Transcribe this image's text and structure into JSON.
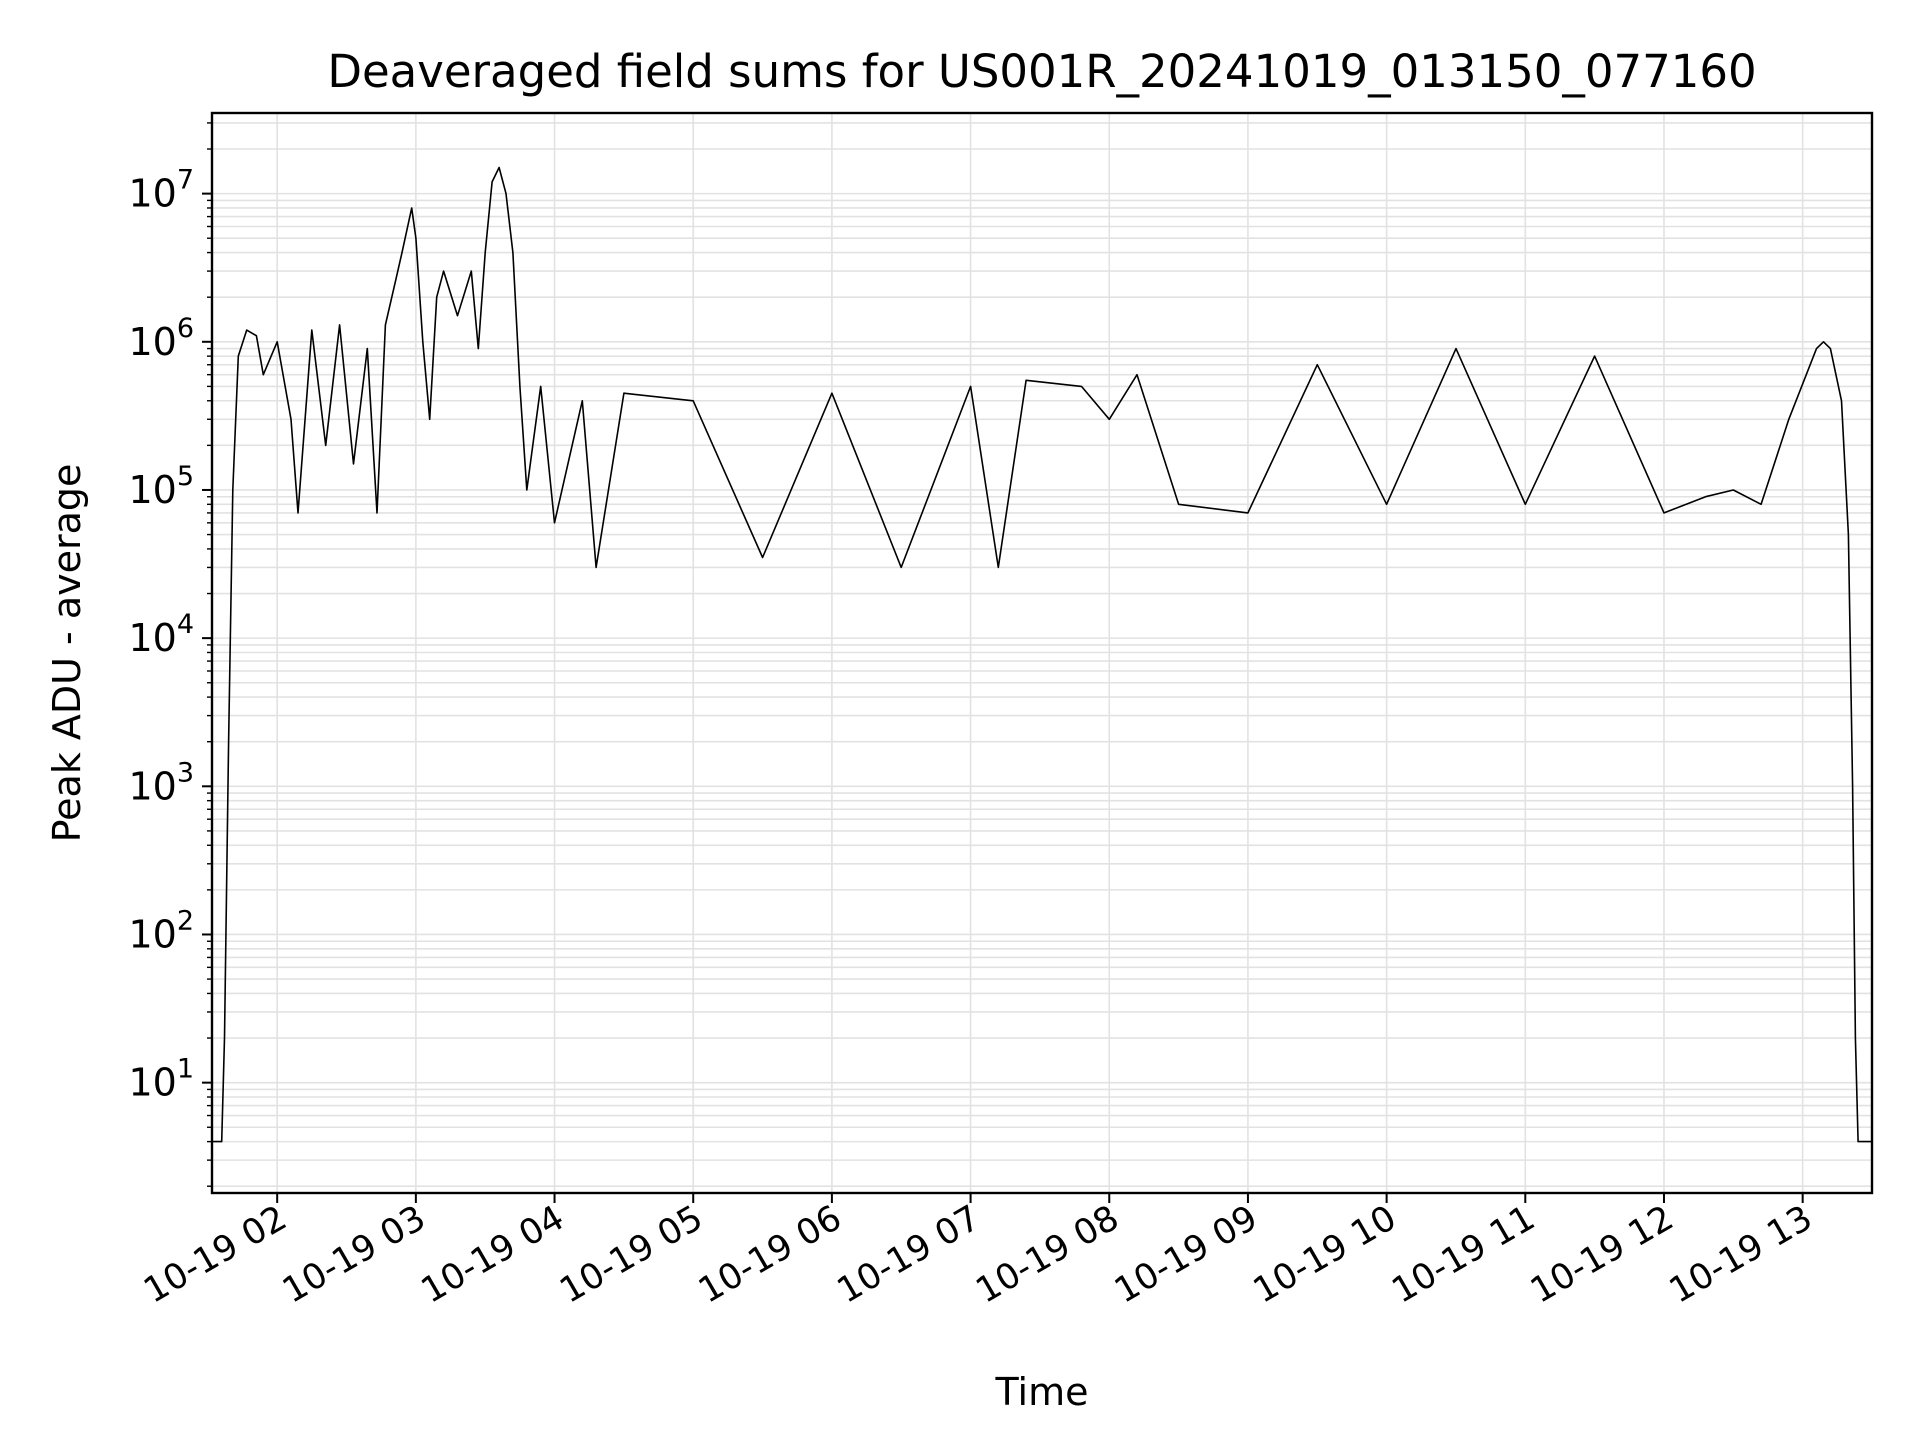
{
  "chart_data": {
    "type": "line",
    "title": "Deaveraged field sums for US001R_20241019_013150_077160",
    "xlabel": "Time",
    "ylabel": "Peak ADU - average",
    "yscale": "log",
    "ylim": [
      1.8,
      35000000
    ],
    "xlim_hours": [
      1.53,
      13.5
    ],
    "grid": true,
    "legend": "none",
    "line_color": "#000000",
    "x_ticks": [
      {
        "label": "10-19 02",
        "hour": 2
      },
      {
        "label": "10-19 03",
        "hour": 3
      },
      {
        "label": "10-19 04",
        "hour": 4
      },
      {
        "label": "10-19 05",
        "hour": 5
      },
      {
        "label": "10-19 06",
        "hour": 6
      },
      {
        "label": "10-19 07",
        "hour": 7
      },
      {
        "label": "10-19 08",
        "hour": 8
      },
      {
        "label": "10-19 09",
        "hour": 9
      },
      {
        "label": "10-19 10",
        "hour": 10
      },
      {
        "label": "10-19 11",
        "hour": 11
      },
      {
        "label": "10-19 12",
        "hour": 12
      },
      {
        "label": "10-19 13",
        "hour": 13
      }
    ],
    "y_ticks": [
      {
        "base": "10",
        "exp": "1",
        "value": 10
      },
      {
        "base": "10",
        "exp": "2",
        "value": 100
      },
      {
        "base": "10",
        "exp": "3",
        "value": 1000
      },
      {
        "base": "10",
        "exp": "4",
        "value": 10000
      },
      {
        "base": "10",
        "exp": "5",
        "value": 100000
      },
      {
        "base": "10",
        "exp": "6",
        "value": 1000000
      },
      {
        "base": "10",
        "exp": "7",
        "value": 10000000
      }
    ],
    "series": [
      {
        "points": [
          [
            1.53,
            4
          ],
          [
            1.6,
            4
          ],
          [
            1.62,
            20
          ],
          [
            1.65,
            2000
          ],
          [
            1.68,
            100000
          ],
          [
            1.72,
            800000
          ],
          [
            1.78,
            1200000
          ],
          [
            1.85,
            1100000
          ],
          [
            1.9,
            600000
          ],
          [
            2.0,
            1000000
          ],
          [
            2.1,
            300000
          ],
          [
            2.15,
            70000
          ],
          [
            2.25,
            1200000
          ],
          [
            2.35,
            200000
          ],
          [
            2.45,
            1300000
          ],
          [
            2.55,
            150000
          ],
          [
            2.65,
            900000
          ],
          [
            2.72,
            70000
          ],
          [
            2.78,
            1300000
          ],
          [
            2.85,
            2500000
          ],
          [
            2.9,
            4000000
          ],
          [
            2.97,
            8000000
          ],
          [
            3.0,
            5000000
          ],
          [
            3.05,
            1000000
          ],
          [
            3.1,
            300000
          ],
          [
            3.15,
            2000000
          ],
          [
            3.2,
            3000000
          ],
          [
            3.3,
            1500000
          ],
          [
            3.4,
            3000000
          ],
          [
            3.45,
            900000
          ],
          [
            3.5,
            4000000
          ],
          [
            3.55,
            12000000
          ],
          [
            3.6,
            15000000
          ],
          [
            3.65,
            10000000
          ],
          [
            3.7,
            4000000
          ],
          [
            3.75,
            500000
          ],
          [
            3.8,
            100000
          ],
          [
            3.9,
            500000
          ],
          [
            4.0,
            60000
          ],
          [
            4.2,
            400000
          ],
          [
            4.3,
            30000
          ],
          [
            4.5,
            450000
          ],
          [
            5.0,
            400000
          ],
          [
            5.5,
            35000
          ],
          [
            6.0,
            450000
          ],
          [
            6.5,
            30000
          ],
          [
            7.0,
            500000
          ],
          [
            7.2,
            30000
          ],
          [
            7.4,
            550000
          ],
          [
            7.8,
            500000
          ],
          [
            8.0,
            300000
          ],
          [
            8.2,
            600000
          ],
          [
            8.5,
            80000
          ],
          [
            9.0,
            70000
          ],
          [
            9.5,
            700000
          ],
          [
            10.0,
            80000
          ],
          [
            10.5,
            900000
          ],
          [
            11.0,
            80000
          ],
          [
            11.5,
            800000
          ],
          [
            12.0,
            70000
          ],
          [
            12.3,
            90000
          ],
          [
            12.5,
            100000
          ],
          [
            12.7,
            80000
          ],
          [
            12.9,
            300000
          ],
          [
            13.1,
            900000
          ],
          [
            13.15,
            1000000
          ],
          [
            13.2,
            900000
          ],
          [
            13.28,
            400000
          ],
          [
            13.33,
            50000
          ],
          [
            13.36,
            1000
          ],
          [
            13.38,
            20
          ],
          [
            13.4,
            4
          ],
          [
            13.5,
            4
          ]
        ]
      }
    ]
  }
}
